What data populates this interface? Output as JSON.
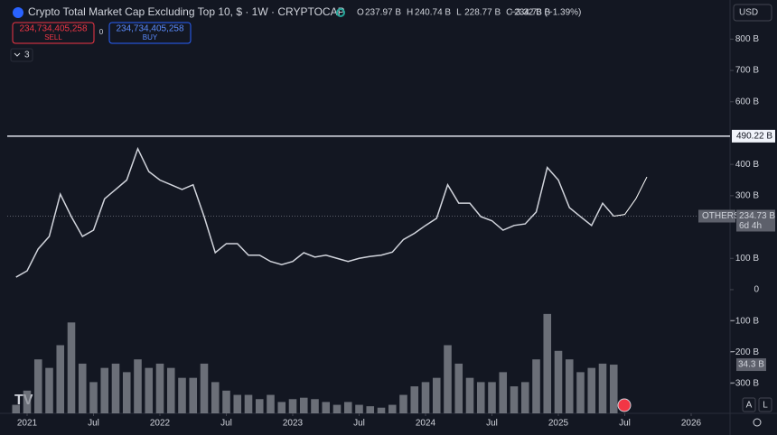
{
  "header": {
    "title": "Crypto Total Market Cap Excluding Top 10, $ · 1W · CRYPTOCAP",
    "ohlc": [
      {
        "key": "O",
        "value": "237.97 B"
      },
      {
        "key": "H",
        "value": "240.74 B"
      },
      {
        "key": "L",
        "value": "228.77 B"
      },
      {
        "key": "C",
        "value": "234.73 B"
      }
    ],
    "change": "−3.32 B (−1.39%)",
    "currency": "USD",
    "sell": {
      "price": "234,734,405,258",
      "label": "SELL"
    },
    "spread": "0",
    "buy": {
      "price": "234,734,405,258",
      "label": "BUY"
    },
    "indicators": "3",
    "buttons": [
      "A",
      "L"
    ]
  },
  "chart_data": {
    "type": "line",
    "x": [
      "2020-12",
      "2021-01",
      "2021-02",
      "2021-03",
      "2021-04",
      "2021-05",
      "2021-06",
      "2021-07",
      "2021-08",
      "2021-09",
      "2021-10",
      "2021-11",
      "2021-12",
      "2022-01",
      "2022-02",
      "2022-03",
      "2022-04",
      "2022-05",
      "2022-06",
      "2022-07",
      "2022-08",
      "2022-09",
      "2022-10",
      "2022-11",
      "2022-12",
      "2023-01",
      "2023-02",
      "2023-03",
      "2023-04",
      "2023-05",
      "2023-06",
      "2023-07",
      "2023-08",
      "2023-09",
      "2023-10",
      "2023-11",
      "2023-12",
      "2024-01",
      "2024-02",
      "2024-03",
      "2024-04",
      "2024-05",
      "2024-06",
      "2024-07",
      "2024-08",
      "2024-09",
      "2024-10",
      "2024-11",
      "2024-12",
      "2025-01",
      "2025-02",
      "2025-03",
      "2025-04",
      "2025-05",
      "2025-06"
    ],
    "series": [
      {
        "name": "OTHERS",
        "color": "#d1d4dc",
        "values": [
          40,
          60,
          130,
          170,
          305,
          233,
          170,
          190,
          290,
          320,
          350,
          450,
          377,
          350,
          335,
          320,
          335,
          233,
          118,
          147,
          147,
          110,
          110,
          90,
          80,
          90,
          118,
          104,
          110,
          100,
          90,
          100,
          106,
          110,
          120,
          160,
          180,
          205,
          228,
          335,
          276,
          276,
          233,
          220,
          190,
          205,
          210,
          248,
          390,
          350,
          262,
          233,
          205,
          276,
          234.73
        ]
      }
    ],
    "volume": {
      "color": "#8a8d96",
      "label": "34.3 B",
      "values": [
        6,
        16,
        38,
        32,
        48,
        64,
        35,
        22,
        32,
        35,
        29,
        38,
        32,
        35,
        32,
        25,
        25,
        35,
        22,
        16,
        13,
        13,
        10,
        13,
        8,
        10,
        11,
        10,
        8,
        6,
        8,
        6,
        5,
        4,
        6,
        13,
        19,
        22,
        25,
        48,
        35,
        25,
        22,
        22,
        29,
        19,
        22,
        38,
        70,
        44,
        38,
        29,
        32,
        35,
        34.3
      ],
      "ylim": [
        0,
        75
      ]
    },
    "projection": {
      "x": [
        "2025-06",
        "2025-07",
        "2025-08",
        "2025-09"
      ],
      "values": [
        234.73,
        240,
        290,
        360
      ]
    },
    "hline": {
      "value": 490.22,
      "label": "490.22 B"
    },
    "last_price": {
      "value": 234.73,
      "label": "234.73 B",
      "countdown": "6d 4h"
    },
    "xlim": [
      "2020-11",
      "2026-03"
    ],
    "xticks": [
      {
        "value": "2021-01",
        "label": "2021"
      },
      {
        "value": "2021-07",
        "label": "Jul"
      },
      {
        "value": "2022-01",
        "label": "2022"
      },
      {
        "value": "2022-07",
        "label": "Jul"
      },
      {
        "value": "2023-01",
        "label": "2023"
      },
      {
        "value": "2023-07",
        "label": "Jul"
      },
      {
        "value": "2024-01",
        "label": "2024"
      },
      {
        "value": "2024-07",
        "label": "Jul"
      },
      {
        "value": "2025-01",
        "label": "2025"
      },
      {
        "value": "2025-07",
        "label": "Jul"
      },
      {
        "value": "2026-01",
        "label": "2026"
      }
    ],
    "ylim": [
      -395,
      925
    ],
    "yticks": [
      {
        "value": -300,
        "label": "−300 B"
      },
      {
        "value": -200,
        "label": "−200 B"
      },
      {
        "value": -100,
        "label": "−100 B"
      },
      0,
      {
        "value": 100,
        "label": "100 B"
      },
      {
        "value": 300,
        "label": "300 B"
      },
      {
        "value": 400,
        "label": "400 B"
      },
      {
        "value": 600,
        "label": "600 B"
      },
      {
        "value": 700,
        "label": "700 B"
      },
      {
        "value": 800,
        "label": "800 B"
      }
    ]
  }
}
